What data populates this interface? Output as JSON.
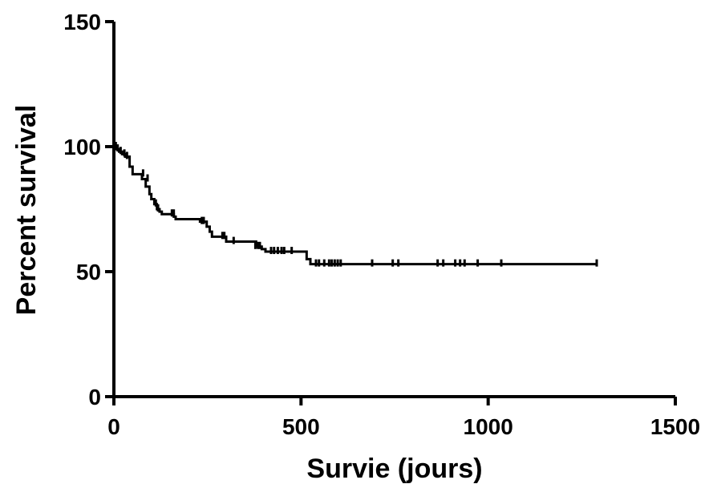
{
  "chart_data": {
    "type": "line",
    "subtype": "kaplan-meier",
    "title": "",
    "xlabel": "Survie (jours)",
    "ylabel": "Percent survival",
    "xlim": [
      0,
      1500
    ],
    "ylim": [
      0,
      150
    ],
    "x_ticks": [
      "0",
      "500",
      "1000",
      "1500"
    ],
    "y_ticks": [
      "0",
      "50",
      "100",
      "150"
    ],
    "grid": false,
    "legend": "none",
    "line_color": "#000000",
    "steps": [
      {
        "x": 0,
        "y": 100
      },
      {
        "x": 6,
        "y": 99
      },
      {
        "x": 14,
        "y": 98
      },
      {
        "x": 22,
        "y": 97
      },
      {
        "x": 30,
        "y": 96
      },
      {
        "x": 42,
        "y": 92
      },
      {
        "x": 50,
        "y": 89
      },
      {
        "x": 75,
        "y": 87
      },
      {
        "x": 85,
        "y": 84
      },
      {
        "x": 95,
        "y": 81
      },
      {
        "x": 100,
        "y": 79
      },
      {
        "x": 108,
        "y": 77
      },
      {
        "x": 115,
        "y": 75
      },
      {
        "x": 122,
        "y": 74
      },
      {
        "x": 128,
        "y": 73
      },
      {
        "x": 160,
        "y": 72
      },
      {
        "x": 165,
        "y": 71
      },
      {
        "x": 230,
        "y": 70
      },
      {
        "x": 248,
        "y": 68
      },
      {
        "x": 256,
        "y": 66
      },
      {
        "x": 262,
        "y": 64
      },
      {
        "x": 300,
        "y": 62
      },
      {
        "x": 380,
        "y": 60
      },
      {
        "x": 395,
        "y": 59
      },
      {
        "x": 405,
        "y": 58
      },
      {
        "x": 515,
        "y": 55
      },
      {
        "x": 525,
        "y": 53
      },
      {
        "x": 1290,
        "y": 53
      }
    ],
    "censored": [
      {
        "x": 5,
        "y": 100
      },
      {
        "x": 10,
        "y": 99
      },
      {
        "x": 18,
        "y": 98
      },
      {
        "x": 28,
        "y": 97
      },
      {
        "x": 35,
        "y": 96
      },
      {
        "x": 78,
        "y": 89
      },
      {
        "x": 90,
        "y": 87
      },
      {
        "x": 112,
        "y": 77
      },
      {
        "x": 118,
        "y": 75
      },
      {
        "x": 155,
        "y": 73
      },
      {
        "x": 160,
        "y": 73
      },
      {
        "x": 235,
        "y": 70
      },
      {
        "x": 240,
        "y": 70
      },
      {
        "x": 290,
        "y": 64
      },
      {
        "x": 295,
        "y": 64
      },
      {
        "x": 320,
        "y": 62
      },
      {
        "x": 378,
        "y": 60
      },
      {
        "x": 385,
        "y": 60
      },
      {
        "x": 390,
        "y": 60
      },
      {
        "x": 420,
        "y": 58
      },
      {
        "x": 428,
        "y": 58
      },
      {
        "x": 438,
        "y": 58
      },
      {
        "x": 448,
        "y": 58
      },
      {
        "x": 455,
        "y": 58
      },
      {
        "x": 475,
        "y": 58
      },
      {
        "x": 540,
        "y": 53
      },
      {
        "x": 548,
        "y": 53
      },
      {
        "x": 562,
        "y": 53
      },
      {
        "x": 575,
        "y": 53
      },
      {
        "x": 582,
        "y": 53
      },
      {
        "x": 590,
        "y": 53
      },
      {
        "x": 598,
        "y": 53
      },
      {
        "x": 606,
        "y": 53
      },
      {
        "x": 690,
        "y": 53
      },
      {
        "x": 745,
        "y": 53
      },
      {
        "x": 760,
        "y": 53
      },
      {
        "x": 865,
        "y": 53
      },
      {
        "x": 880,
        "y": 53
      },
      {
        "x": 912,
        "y": 53
      },
      {
        "x": 925,
        "y": 53
      },
      {
        "x": 937,
        "y": 53
      },
      {
        "x": 972,
        "y": 53
      },
      {
        "x": 1035,
        "y": 53
      },
      {
        "x": 1290,
        "y": 53
      }
    ]
  }
}
